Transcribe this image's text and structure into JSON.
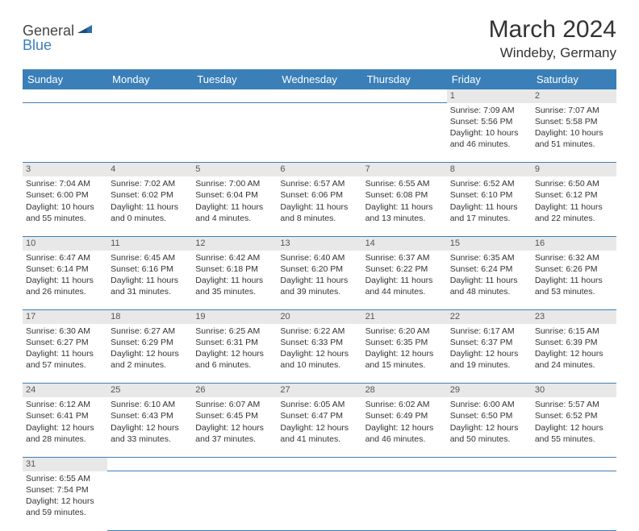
{
  "logo": {
    "part1": "General",
    "part2": "Blue"
  },
  "title": "March 2024",
  "location": "Windeby, Germany",
  "colors": {
    "header_bg": "#3b7fb8",
    "header_text": "#ffffff",
    "daynum_bg": "#e8e8e8",
    "row_divider": "#3b7fb8",
    "text": "#333333",
    "background": "#ffffff"
  },
  "weekdays": [
    "Sunday",
    "Monday",
    "Tuesday",
    "Wednesday",
    "Thursday",
    "Friday",
    "Saturday"
  ],
  "weeks": [
    {
      "days": [
        null,
        null,
        null,
        null,
        null,
        {
          "n": "1",
          "sunrise": "Sunrise: 7:09 AM",
          "sunset": "Sunset: 5:56 PM",
          "day1": "Daylight: 10 hours",
          "day2": "and 46 minutes."
        },
        {
          "n": "2",
          "sunrise": "Sunrise: 7:07 AM",
          "sunset": "Sunset: 5:58 PM",
          "day1": "Daylight: 10 hours",
          "day2": "and 51 minutes."
        }
      ]
    },
    {
      "days": [
        {
          "n": "3",
          "sunrise": "Sunrise: 7:04 AM",
          "sunset": "Sunset: 6:00 PM",
          "day1": "Daylight: 10 hours",
          "day2": "and 55 minutes."
        },
        {
          "n": "4",
          "sunrise": "Sunrise: 7:02 AM",
          "sunset": "Sunset: 6:02 PM",
          "day1": "Daylight: 11 hours",
          "day2": "and 0 minutes."
        },
        {
          "n": "5",
          "sunrise": "Sunrise: 7:00 AM",
          "sunset": "Sunset: 6:04 PM",
          "day1": "Daylight: 11 hours",
          "day2": "and 4 minutes."
        },
        {
          "n": "6",
          "sunrise": "Sunrise: 6:57 AM",
          "sunset": "Sunset: 6:06 PM",
          "day1": "Daylight: 11 hours",
          "day2": "and 8 minutes."
        },
        {
          "n": "7",
          "sunrise": "Sunrise: 6:55 AM",
          "sunset": "Sunset: 6:08 PM",
          "day1": "Daylight: 11 hours",
          "day2": "and 13 minutes."
        },
        {
          "n": "8",
          "sunrise": "Sunrise: 6:52 AM",
          "sunset": "Sunset: 6:10 PM",
          "day1": "Daylight: 11 hours",
          "day2": "and 17 minutes."
        },
        {
          "n": "9",
          "sunrise": "Sunrise: 6:50 AM",
          "sunset": "Sunset: 6:12 PM",
          "day1": "Daylight: 11 hours",
          "day2": "and 22 minutes."
        }
      ]
    },
    {
      "days": [
        {
          "n": "10",
          "sunrise": "Sunrise: 6:47 AM",
          "sunset": "Sunset: 6:14 PM",
          "day1": "Daylight: 11 hours",
          "day2": "and 26 minutes."
        },
        {
          "n": "11",
          "sunrise": "Sunrise: 6:45 AM",
          "sunset": "Sunset: 6:16 PM",
          "day1": "Daylight: 11 hours",
          "day2": "and 31 minutes."
        },
        {
          "n": "12",
          "sunrise": "Sunrise: 6:42 AM",
          "sunset": "Sunset: 6:18 PM",
          "day1": "Daylight: 11 hours",
          "day2": "and 35 minutes."
        },
        {
          "n": "13",
          "sunrise": "Sunrise: 6:40 AM",
          "sunset": "Sunset: 6:20 PM",
          "day1": "Daylight: 11 hours",
          "day2": "and 39 minutes."
        },
        {
          "n": "14",
          "sunrise": "Sunrise: 6:37 AM",
          "sunset": "Sunset: 6:22 PM",
          "day1": "Daylight: 11 hours",
          "day2": "and 44 minutes."
        },
        {
          "n": "15",
          "sunrise": "Sunrise: 6:35 AM",
          "sunset": "Sunset: 6:24 PM",
          "day1": "Daylight: 11 hours",
          "day2": "and 48 minutes."
        },
        {
          "n": "16",
          "sunrise": "Sunrise: 6:32 AM",
          "sunset": "Sunset: 6:26 PM",
          "day1": "Daylight: 11 hours",
          "day2": "and 53 minutes."
        }
      ]
    },
    {
      "days": [
        {
          "n": "17",
          "sunrise": "Sunrise: 6:30 AM",
          "sunset": "Sunset: 6:27 PM",
          "day1": "Daylight: 11 hours",
          "day2": "and 57 minutes."
        },
        {
          "n": "18",
          "sunrise": "Sunrise: 6:27 AM",
          "sunset": "Sunset: 6:29 PM",
          "day1": "Daylight: 12 hours",
          "day2": "and 2 minutes."
        },
        {
          "n": "19",
          "sunrise": "Sunrise: 6:25 AM",
          "sunset": "Sunset: 6:31 PM",
          "day1": "Daylight: 12 hours",
          "day2": "and 6 minutes."
        },
        {
          "n": "20",
          "sunrise": "Sunrise: 6:22 AM",
          "sunset": "Sunset: 6:33 PM",
          "day1": "Daylight: 12 hours",
          "day2": "and 10 minutes."
        },
        {
          "n": "21",
          "sunrise": "Sunrise: 6:20 AM",
          "sunset": "Sunset: 6:35 PM",
          "day1": "Daylight: 12 hours",
          "day2": "and 15 minutes."
        },
        {
          "n": "22",
          "sunrise": "Sunrise: 6:17 AM",
          "sunset": "Sunset: 6:37 PM",
          "day1": "Daylight: 12 hours",
          "day2": "and 19 minutes."
        },
        {
          "n": "23",
          "sunrise": "Sunrise: 6:15 AM",
          "sunset": "Sunset: 6:39 PM",
          "day1": "Daylight: 12 hours",
          "day2": "and 24 minutes."
        }
      ]
    },
    {
      "days": [
        {
          "n": "24",
          "sunrise": "Sunrise: 6:12 AM",
          "sunset": "Sunset: 6:41 PM",
          "day1": "Daylight: 12 hours",
          "day2": "and 28 minutes."
        },
        {
          "n": "25",
          "sunrise": "Sunrise: 6:10 AM",
          "sunset": "Sunset: 6:43 PM",
          "day1": "Daylight: 12 hours",
          "day2": "and 33 minutes."
        },
        {
          "n": "26",
          "sunrise": "Sunrise: 6:07 AM",
          "sunset": "Sunset: 6:45 PM",
          "day1": "Daylight: 12 hours",
          "day2": "and 37 minutes."
        },
        {
          "n": "27",
          "sunrise": "Sunrise: 6:05 AM",
          "sunset": "Sunset: 6:47 PM",
          "day1": "Daylight: 12 hours",
          "day2": "and 41 minutes."
        },
        {
          "n": "28",
          "sunrise": "Sunrise: 6:02 AM",
          "sunset": "Sunset: 6:49 PM",
          "day1": "Daylight: 12 hours",
          "day2": "and 46 minutes."
        },
        {
          "n": "29",
          "sunrise": "Sunrise: 6:00 AM",
          "sunset": "Sunset: 6:50 PM",
          "day1": "Daylight: 12 hours",
          "day2": "and 50 minutes."
        },
        {
          "n": "30",
          "sunrise": "Sunrise: 5:57 AM",
          "sunset": "Sunset: 6:52 PM",
          "day1": "Daylight: 12 hours",
          "day2": "and 55 minutes."
        }
      ]
    },
    {
      "days": [
        {
          "n": "31",
          "sunrise": "Sunrise: 6:55 AM",
          "sunset": "Sunset: 7:54 PM",
          "day1": "Daylight: 12 hours",
          "day2": "and 59 minutes."
        },
        null,
        null,
        null,
        null,
        null,
        null
      ]
    }
  ]
}
